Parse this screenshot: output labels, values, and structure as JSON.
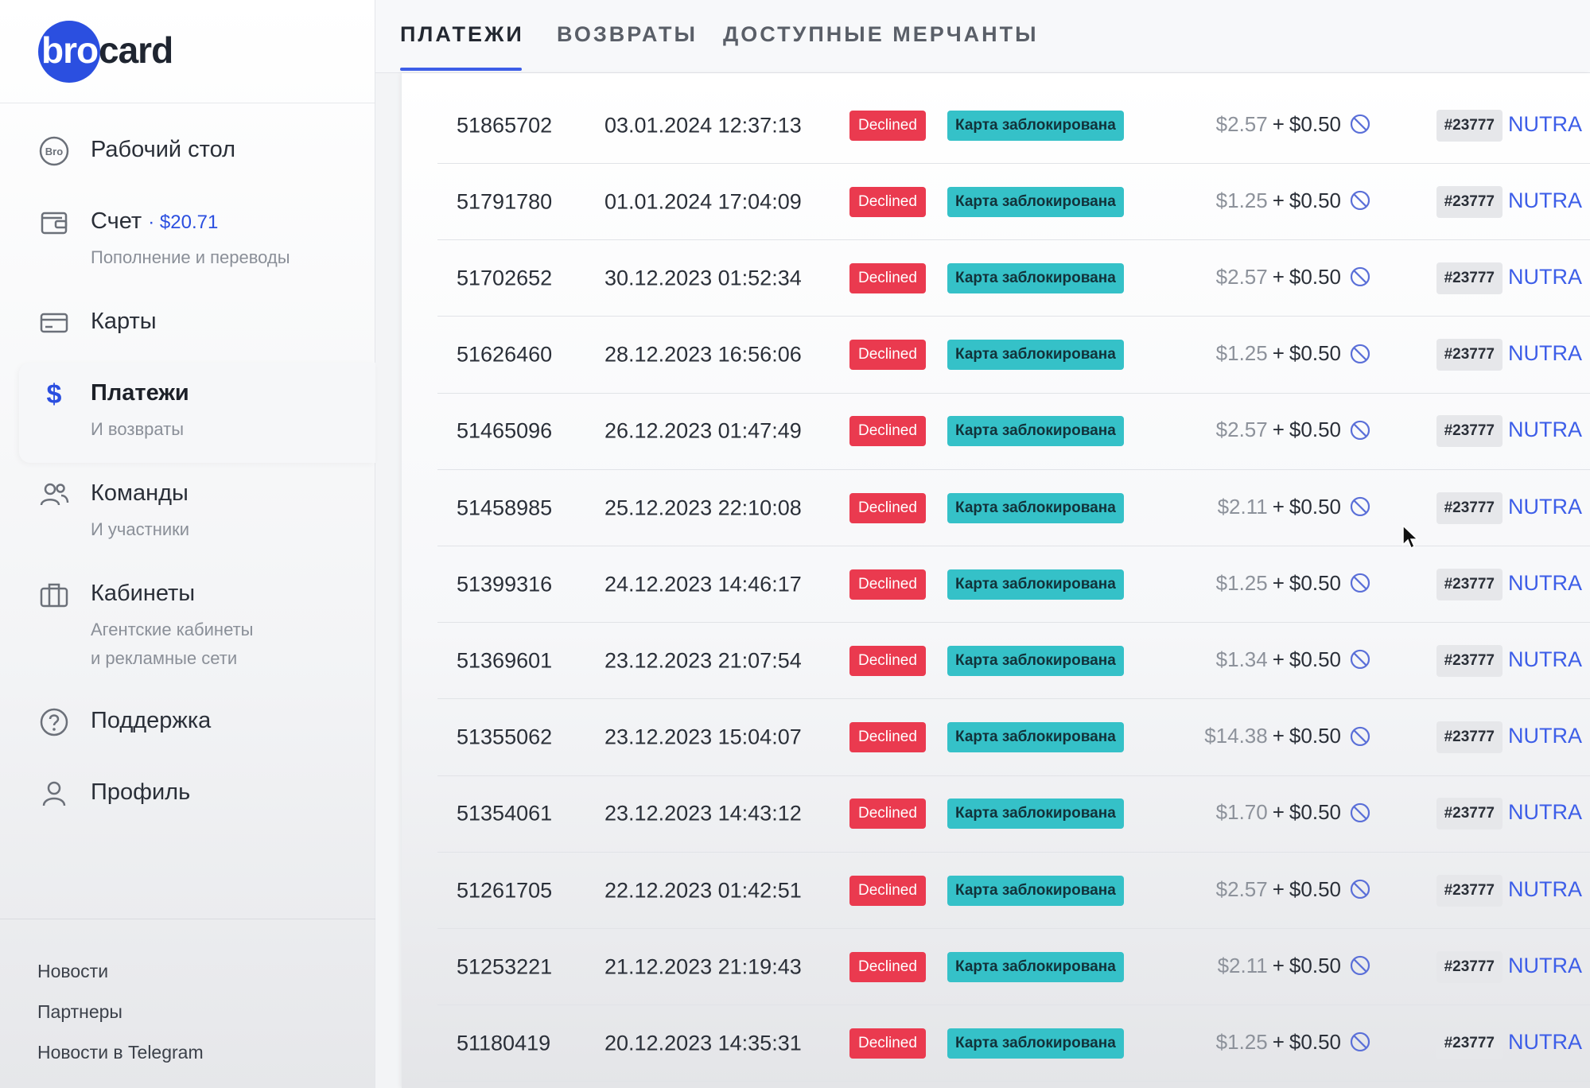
{
  "logo": {
    "part1": "bro",
    "part2": "card"
  },
  "sidebar": {
    "items": [
      {
        "title": "Рабочий стол",
        "sub": "",
        "icon": "bro-circle-icon",
        "active": false
      },
      {
        "title": "Счет",
        "balance": "· $20.71",
        "sub": "Пополнение и переводы",
        "icon": "wallet-icon",
        "active": false
      },
      {
        "title": "Карты",
        "sub": "",
        "icon": "card-icon",
        "active": false
      },
      {
        "title": "Платежи",
        "sub": "И возвраты",
        "icon": "dollar-icon",
        "active": true
      },
      {
        "title": "Команды",
        "sub": "И участники",
        "icon": "users-icon",
        "active": false
      },
      {
        "title": "Кабинеты",
        "sub": "Агентские кабинеты",
        "sub2": "и рекламные сети",
        "icon": "briefcase-icon",
        "active": false
      },
      {
        "title": "Поддержка",
        "sub": "",
        "icon": "help-icon",
        "active": false
      },
      {
        "title": "Профиль",
        "sub": "",
        "icon": "user-icon",
        "active": false
      }
    ],
    "footer": [
      "Новости",
      "Партнеры",
      "Новости в Telegram"
    ]
  },
  "tabs": [
    {
      "label": "ПЛАТЕЖИ",
      "active": true
    },
    {
      "label": "ВОЗВРАТЫ",
      "active": false
    },
    {
      "label": "ДОСТУПНЫЕ МЕРЧАНТЫ",
      "active": false
    }
  ],
  "colors": {
    "accent": "#3d5ee8",
    "declined": "#ea3a4f",
    "reason": "#35c1c8"
  },
  "payments": [
    {
      "id": "51865702",
      "date": "03.01.2024 12:37:13",
      "status": "Declined",
      "reason": "Карта заблокирована",
      "amount": "$2.57",
      "fee": "$0.50",
      "tag": "#23777",
      "merchant": "NUTRA"
    },
    {
      "id": "51791780",
      "date": "01.01.2024 17:04:09",
      "status": "Declined",
      "reason": "Карта заблокирована",
      "amount": "$1.25",
      "fee": "$0.50",
      "tag": "#23777",
      "merchant": "NUTRA"
    },
    {
      "id": "51702652",
      "date": "30.12.2023 01:52:34",
      "status": "Declined",
      "reason": "Карта заблокирована",
      "amount": "$2.57",
      "fee": "$0.50",
      "tag": "#23777",
      "merchant": "NUTRA"
    },
    {
      "id": "51626460",
      "date": "28.12.2023 16:56:06",
      "status": "Declined",
      "reason": "Карта заблокирована",
      "amount": "$1.25",
      "fee": "$0.50",
      "tag": "#23777",
      "merchant": "NUTRA"
    },
    {
      "id": "51465096",
      "date": "26.12.2023 01:47:49",
      "status": "Declined",
      "reason": "Карта заблокирована",
      "amount": "$2.57",
      "fee": "$0.50",
      "tag": "#23777",
      "merchant": "NUTRA"
    },
    {
      "id": "51458985",
      "date": "25.12.2023 22:10:08",
      "status": "Declined",
      "reason": "Карта заблокирована",
      "amount": "$2.11",
      "fee": "$0.50",
      "tag": "#23777",
      "merchant": "NUTRA"
    },
    {
      "id": "51399316",
      "date": "24.12.2023 14:46:17",
      "status": "Declined",
      "reason": "Карта заблокирована",
      "amount": "$1.25",
      "fee": "$0.50",
      "tag": "#23777",
      "merchant": "NUTRA"
    },
    {
      "id": "51369601",
      "date": "23.12.2023 21:07:54",
      "status": "Declined",
      "reason": "Карта заблокирована",
      "amount": "$1.34",
      "fee": "$0.50",
      "tag": "#23777",
      "merchant": "NUTRA"
    },
    {
      "id": "51355062",
      "date": "23.12.2023 15:04:07",
      "status": "Declined",
      "reason": "Карта заблокирована",
      "amount": "$14.38",
      "fee": "$0.50",
      "tag": "#23777",
      "merchant": "NUTRA"
    },
    {
      "id": "51354061",
      "date": "23.12.2023 14:43:12",
      "status": "Declined",
      "reason": "Карта заблокирована",
      "amount": "$1.70",
      "fee": "$0.50",
      "tag": "#23777",
      "merchant": "NUTRA"
    },
    {
      "id": "51261705",
      "date": "22.12.2023 01:42:51",
      "status": "Declined",
      "reason": "Карта заблокирована",
      "amount": "$2.57",
      "fee": "$0.50",
      "tag": "#23777",
      "merchant": "NUTRA"
    },
    {
      "id": "51253221",
      "date": "21.12.2023 21:19:43",
      "status": "Declined",
      "reason": "Карта заблокирована",
      "amount": "$2.11",
      "fee": "$0.50",
      "tag": "#23777",
      "merchant": "NUTRA"
    },
    {
      "id": "51180419",
      "date": "20.12.2023 14:35:31",
      "status": "Declined",
      "reason": "Карта заблокирована",
      "amount": "$1.25",
      "fee": "$0.50",
      "tag": "#23777",
      "merchant": "NUTRA"
    }
  ]
}
